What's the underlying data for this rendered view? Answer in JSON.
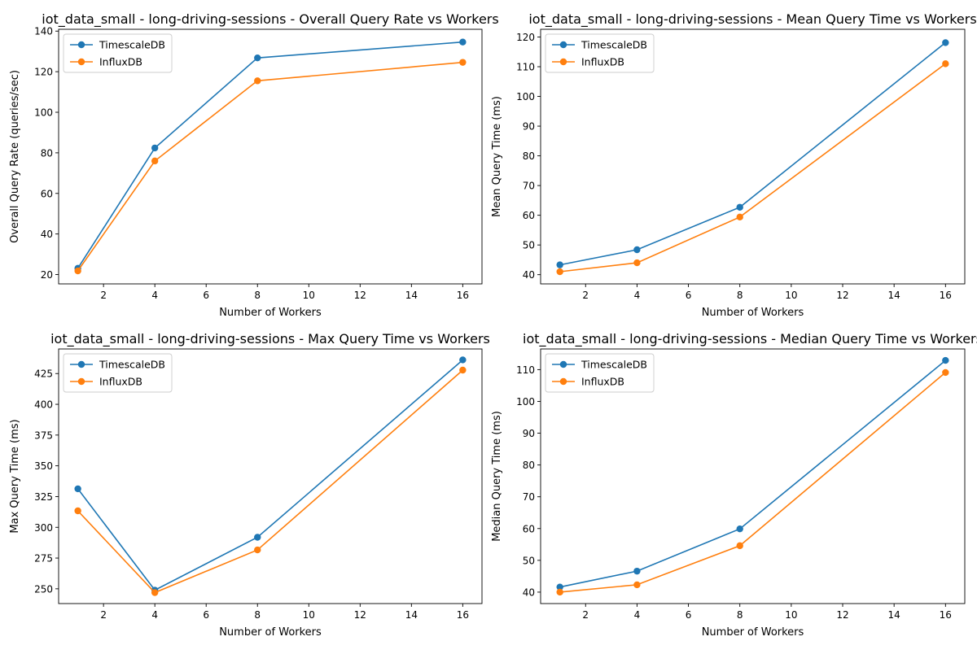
{
  "colors": {
    "timescale": "#1f77b4",
    "influx": "#ff7f0e"
  },
  "chart_data": [
    {
      "type": "line",
      "title": "iot_data_small - long-driving-sessions - Overall Query Rate vs Workers",
      "xlabel": "Number of Workers",
      "ylabel": "Overall Query Rate (queries/sec)",
      "x": [
        1,
        4,
        8,
        16
      ],
      "xlim": [
        0.25,
        16.75
      ],
      "ylim": [
        15.4,
        140.9
      ],
      "xticks": [
        2,
        4,
        6,
        8,
        10,
        12,
        14,
        16
      ],
      "yticks": [
        20,
        40,
        60,
        80,
        100,
        120,
        140
      ],
      "legend": "upper-left",
      "series": [
        {
          "name": "TimescaleDB",
          "values": [
            23.1,
            82.4,
            126.8,
            134.6
          ]
        },
        {
          "name": "InfluxDB",
          "values": [
            21.8,
            76.0,
            115.5,
            124.6
          ]
        }
      ]
    },
    {
      "type": "line",
      "title": "iot_data_small - long-driving-sessions - Mean Query Time vs Workers",
      "xlabel": "Number of Workers",
      "ylabel": "Mean Query Time (ms)",
      "x": [
        1,
        4,
        8,
        16
      ],
      "xlim": [
        0.25,
        16.75
      ],
      "ylim": [
        36.9,
        122.6
      ],
      "xticks": [
        2,
        4,
        6,
        8,
        10,
        12,
        14,
        16
      ],
      "yticks": [
        40,
        50,
        60,
        70,
        80,
        90,
        100,
        110,
        120
      ],
      "legend": "upper-left",
      "series": [
        {
          "name": "TimescaleDB",
          "values": [
            43.3,
            48.4,
            62.7,
            118.1
          ]
        },
        {
          "name": "InfluxDB",
          "values": [
            41.0,
            44.0,
            59.4,
            111.0
          ]
        }
      ]
    },
    {
      "type": "line",
      "title": "iot_data_small - long-driving-sessions - Max Query Time vs Workers",
      "xlabel": "Number of Workers",
      "ylabel": "Max Query Time (ms)",
      "x": [
        1,
        4,
        8,
        16
      ],
      "xlim": [
        0.25,
        16.75
      ],
      "ylim": [
        238.0,
        445.0
      ],
      "xticks": [
        2,
        4,
        6,
        8,
        10,
        12,
        14,
        16
      ],
      "yticks": [
        250,
        275,
        300,
        325,
        350,
        375,
        400,
        425
      ],
      "legend": "upper-left",
      "series": [
        {
          "name": "TimescaleDB",
          "values": [
            331.3,
            248.9,
            291.9,
            436.1
          ]
        },
        {
          "name": "InfluxDB",
          "values": [
            313.4,
            246.9,
            281.6,
            427.8
          ]
        }
      ]
    },
    {
      "type": "line",
      "title": "iot_data_small - long-driving-sessions - Median Query Time vs Workers",
      "xlabel": "Number of Workers",
      "ylabel": "Median Query Time (ms)",
      "x": [
        1,
        4,
        8,
        16
      ],
      "xlim": [
        0.25,
        16.75
      ],
      "ylim": [
        36.4,
        116.5
      ],
      "xticks": [
        2,
        4,
        6,
        8,
        10,
        12,
        14,
        16
      ],
      "yticks": [
        40,
        50,
        60,
        70,
        80,
        90,
        100,
        110
      ],
      "legend": "upper-left",
      "series": [
        {
          "name": "TimescaleDB",
          "values": [
            41.6,
            46.6,
            59.9,
            112.9
          ]
        },
        {
          "name": "InfluxDB",
          "values": [
            40.0,
            42.3,
            54.6,
            109.1
          ]
        }
      ]
    }
  ]
}
